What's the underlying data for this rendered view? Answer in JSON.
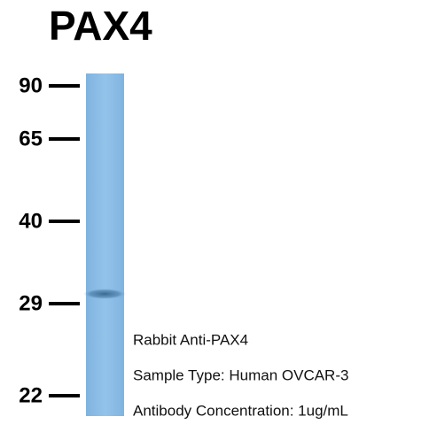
{
  "title": "PAX4",
  "markers": [
    90,
    65,
    40,
    29,
    22
  ],
  "captions": [
    "Rabbit Anti-PAX4",
    "Sample Type: Human OVCAR-3",
    "Antibody Concentration: 1ug/mL"
  ]
}
